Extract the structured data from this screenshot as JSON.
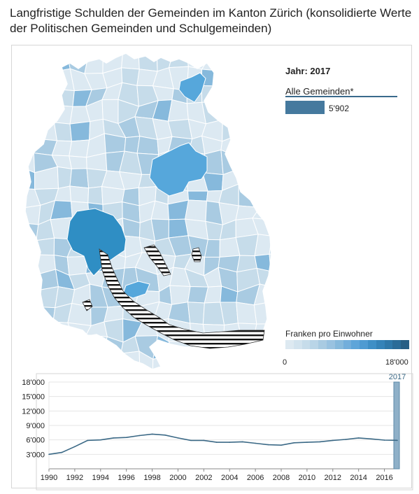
{
  "title": "Langfristige Schulden der Gemeinden im Kanton Zürich (konsolidierte Werte der Politischen Gemeinden und Schulgemeinden)",
  "map": {
    "year_label": "Jahr: 2017",
    "all_label": "Alle Gemeinden*",
    "all_value": "5'902",
    "legend_title": "Franken pro Einwohner",
    "legend_min": "0",
    "legend_max": "18'000",
    "colors": [
      "#dce9f2",
      "#c6dcea",
      "#a9cbe2",
      "#86b9dc",
      "#56a7db",
      "#2f8ec4",
      "#45799e"
    ]
  },
  "chart_data": {
    "type": "line",
    "x": [
      1990,
      1991,
      1992,
      1993,
      1994,
      1995,
      1996,
      1997,
      1998,
      1999,
      2000,
      2001,
      2002,
      2003,
      2004,
      2005,
      2006,
      2007,
      2008,
      2009,
      2010,
      2011,
      2012,
      2013,
      2014,
      2015,
      2016,
      2017
    ],
    "series": [
      {
        "values": [
          3000,
          3400,
          4600,
          5900,
          6000,
          6400,
          6500,
          6900,
          7200,
          7000,
          6400,
          5900,
          5900,
          5500,
          5500,
          5600,
          5300,
          5000,
          4900,
          5400,
          5500,
          5600,
          5900,
          6100,
          6400,
          6200,
          5950,
          5902
        ]
      }
    ],
    "xlim": [
      1990,
      2017
    ],
    "ylim": [
      0,
      18000
    ],
    "y_ticks": [
      {
        "v": 3000,
        "label": "3'000"
      },
      {
        "v": 6000,
        "label": "6'000"
      },
      {
        "v": 9000,
        "label": "9'000"
      },
      {
        "v": 12000,
        "label": "12'000"
      },
      {
        "v": 15000,
        "label": "15'000"
      },
      {
        "v": 18000,
        "label": "18'000"
      }
    ],
    "x_ticks": [
      {
        "v": 1990,
        "label": "1990"
      },
      {
        "v": 1992,
        "label": "1992"
      },
      {
        "v": 1994,
        "label": "1994"
      },
      {
        "v": 1996,
        "label": "1996"
      },
      {
        "v": 1998,
        "label": "1998"
      },
      {
        "v": 2000,
        "label": "2000"
      },
      {
        "v": 2002,
        "label": "2002"
      },
      {
        "v": 2004,
        "label": "2004"
      },
      {
        "v": 2006,
        "label": "2006"
      },
      {
        "v": 2008,
        "label": "2008"
      },
      {
        "v": 2010,
        "label": "2010"
      },
      {
        "v": 2012,
        "label": "2012"
      },
      {
        "v": 2014,
        "label": "2014"
      },
      {
        "v": 2016,
        "label": "2016"
      }
    ],
    "highlight": {
      "x": 2017,
      "label": "2017"
    },
    "grid": true,
    "line_color": "#3b6986",
    "highlight_color": "#8fb0c8"
  }
}
